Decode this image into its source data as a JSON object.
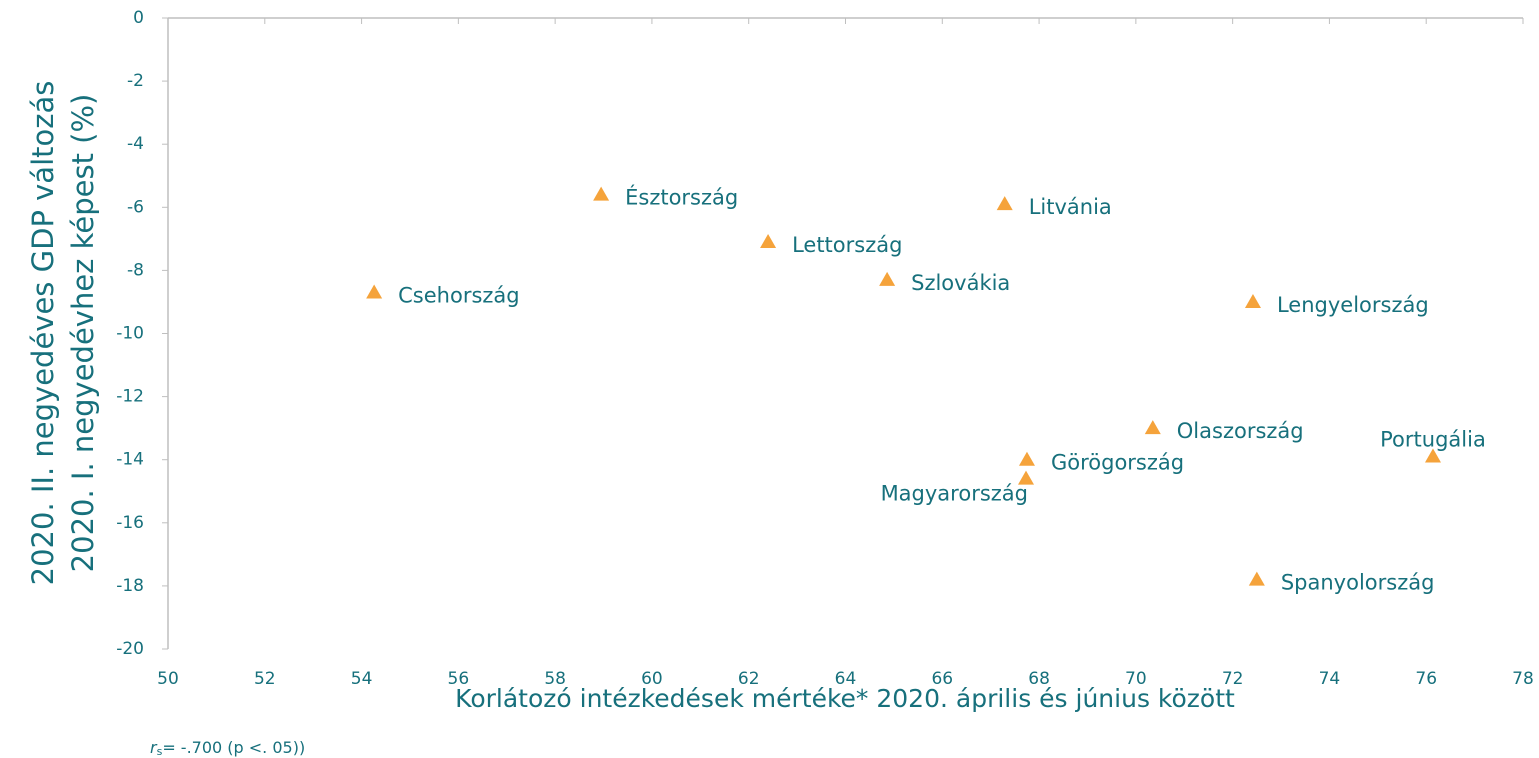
{
  "chart_data": {
    "type": "scatter",
    "x_label": "Korlátozó intézkedések mértéke* 2020. április és június között",
    "y_label": [
      "2020. II. negyedéves GDP változás",
      "2020. I. negyedévhez képest (%)"
    ],
    "annotation": {
      "symbol": "r",
      "subscript": "s",
      "text": "= -.700 (p <. 05))"
    },
    "color": "#f5a33b",
    "labels": [
      "Csehország",
      "Észtország",
      "Lettország",
      "Szlovákia",
      "Litvánia",
      "Lengyelország",
      "Olaszország",
      "Görögország",
      "Magyarország",
      "Portugália",
      "Spanyolország"
    ],
    "label_positions": [
      "right",
      "right",
      "right",
      "right",
      "right",
      "right",
      "right",
      "right",
      "below-left",
      "above",
      "right"
    ],
    "x": [
      54.26,
      58.95,
      62.4,
      64.86,
      67.29,
      72.42,
      70.35,
      67.75,
      67.73,
      76.14,
      72.5
    ],
    "values": [
      -8.7,
      -5.6,
      -7.1,
      -8.3,
      -5.9,
      -9.0,
      -13.0,
      -14.0,
      -14.6,
      -13.9,
      -17.8
    ],
    "xlim": [
      50,
      78
    ],
    "xticks": [
      50,
      52,
      54,
      56,
      58,
      60,
      62,
      64,
      66,
      68,
      70,
      72,
      74,
      76,
      78
    ],
    "ylim": [
      -20,
      0
    ],
    "yticks": [
      0,
      -2,
      -4,
      -6,
      -8,
      -10,
      -12,
      -14,
      -16,
      -18,
      -20
    ]
  }
}
